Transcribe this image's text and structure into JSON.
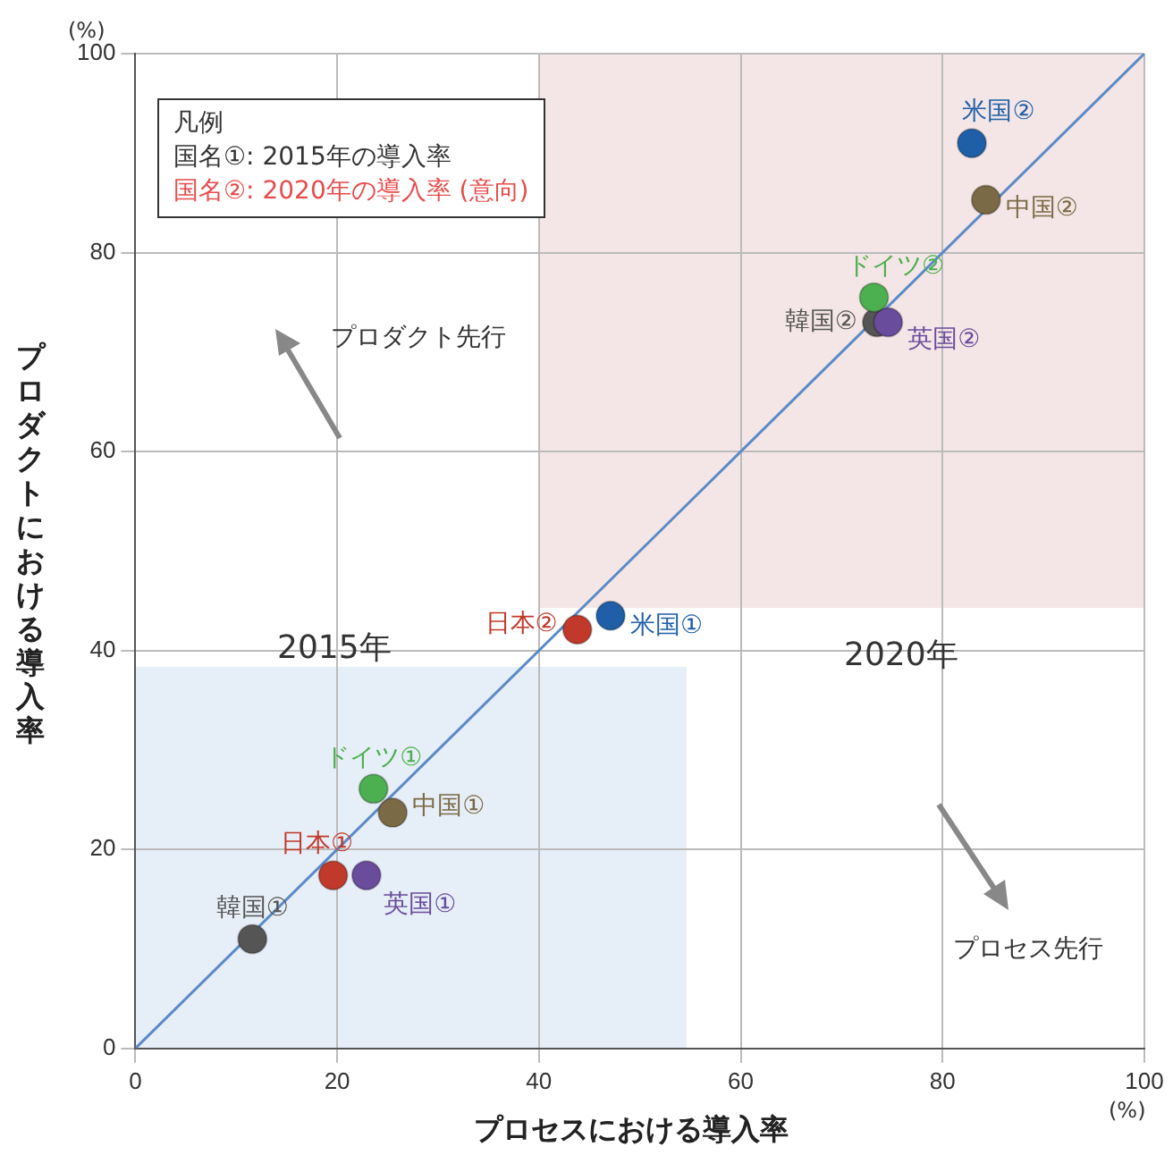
{
  "chart_data": {
    "type": "scatter",
    "xlabel": "プロセスにおける導入率",
    "ylabel": "プロダクトにおける導入率",
    "legend_title": "凡例",
    "xlim": [
      0,
      100
    ],
    "ylim": [
      0,
      100
    ],
    "xticks": [
      0,
      20,
      40,
      60,
      80,
      100
    ],
    "yticks": [
      0,
      20,
      40,
      60,
      80,
      100
    ],
    "grid": true,
    "marker": "circle",
    "legend": false,
    "series": [
      {
        "name": "米国①",
        "color": "#1f5fa8",
        "x": [
          47.1
        ],
        "values": [
          43.5
        ]
      },
      {
        "name": "日本①",
        "color": "#c0392b",
        "x": [
          19.6
        ],
        "values": [
          17.4
        ]
      },
      {
        "name": "ドイツ①",
        "color": "#4caf50",
        "x": [
          23.6
        ],
        "values": [
          26.1
        ]
      },
      {
        "name": "中国①",
        "color": "#7a6a45",
        "x": [
          25.5
        ],
        "values": [
          23.7
        ]
      },
      {
        "name": "英国①",
        "color": "#6a4c9c",
        "x": [
          22.9
        ],
        "values": [
          17.4
        ]
      },
      {
        "name": "韓国①",
        "color": "#555555",
        "x": [
          11.6
        ],
        "values": [
          11.0
        ]
      },
      {
        "name": "米国②",
        "color": "#1f5fa8",
        "x": [
          82.9
        ],
        "values": [
          91.0
        ]
      },
      {
        "name": "中国②",
        "color": "#7a6a45",
        "x": [
          84.3
        ],
        "values": [
          85.3
        ]
      },
      {
        "name": "ドイツ②",
        "color": "#4caf50",
        "x": [
          73.2
        ],
        "values": [
          75.5
        ]
      },
      {
        "name": "英国②",
        "color": "#6a4c9c",
        "x": [
          74.6
        ],
        "values": [
          73.0
        ]
      },
      {
        "name": "韓国②",
        "color": "#555555",
        "x": [
          73.5
        ],
        "values": [
          73.0
        ]
      },
      {
        "name": "日本②",
        "color": "#c0392b",
        "x": [
          43.8
        ],
        "values": [
          42.1
        ]
      },
      {
        "type": "line",
        "color": "#5b8ac6",
        "marker": "none",
        "x": [
          0,
          100
        ],
        "values": [
          0,
          100
        ]
      }
    ],
    "annotations": [
      "(%)",
      "(%)",
      "プロダクト先行",
      "プロセス先行",
      "国名①: 2015年の導入率",
      "国名②: 2020年の導入率 (意向)",
      "2015年",
      "2020年"
    ]
  }
}
